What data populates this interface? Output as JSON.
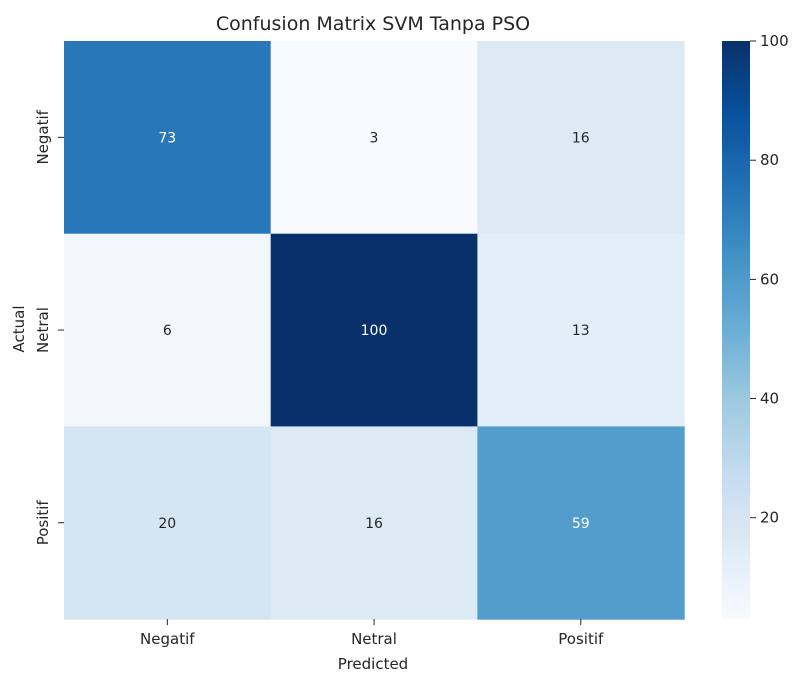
{
  "chart_data": {
    "type": "heatmap",
    "title": "Confusion Matrix SVM Tanpa PSO",
    "xlabel": "Predicted",
    "ylabel": "Actual",
    "x_categories": [
      "Negatif",
      "Netral",
      "Positif"
    ],
    "y_categories": [
      "Negatif",
      "Netral",
      "Positif"
    ],
    "values": [
      [
        73,
        3,
        16
      ],
      [
        6,
        100,
        13
      ],
      [
        20,
        16,
        59
      ]
    ],
    "colorbar": {
      "colormap": "Blues",
      "range": [
        3,
        100
      ],
      "ticks": [
        20,
        40,
        60,
        80,
        100
      ]
    },
    "colors": {
      "text_on_dark": "#ffffff",
      "text_on_light": "#262626"
    }
  }
}
